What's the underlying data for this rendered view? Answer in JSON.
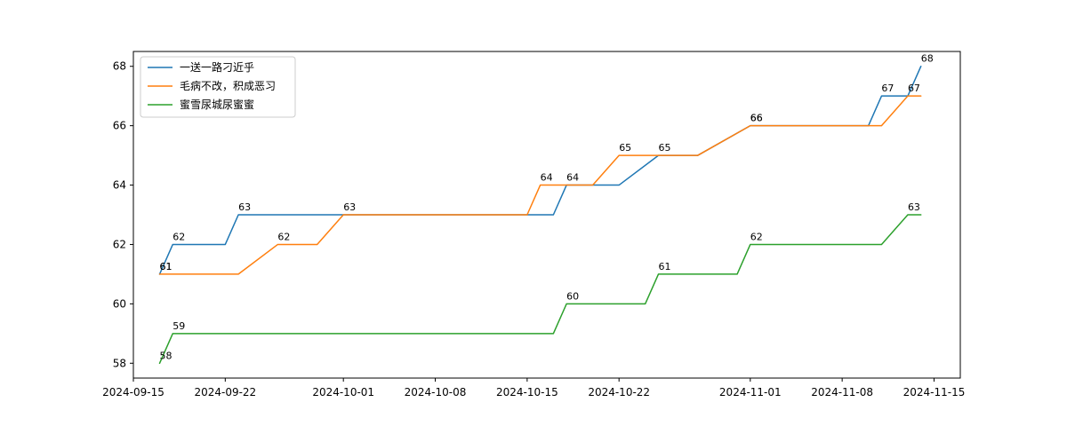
{
  "chart_data": {
    "type": "line",
    "title": "",
    "xlabel": "",
    "ylabel": "",
    "xlim": [
      "2024-09-15",
      "2024-11-17"
    ],
    "ylim": [
      57.5,
      68.5
    ],
    "grid": false,
    "legend_position": "top-left",
    "x_ticks": [
      "2024-09-15",
      "2024-09-22",
      "2024-10-01",
      "2024-10-08",
      "2024-10-15",
      "2024-10-22",
      "2024-11-01",
      "2024-11-08",
      "2024-11-15"
    ],
    "y_ticks": [
      58,
      60,
      62,
      64,
      66,
      68
    ],
    "series": [
      {
        "name": "一送一路刁近乎",
        "color": "#1f77b4",
        "points": [
          {
            "date": "2024-09-17",
            "value": 61
          },
          {
            "date": "2024-09-18",
            "value": 62
          },
          {
            "date": "2024-09-22",
            "value": 62
          },
          {
            "date": "2024-09-23",
            "value": 63
          },
          {
            "date": "2024-10-17",
            "value": 63
          },
          {
            "date": "2024-10-18",
            "value": 64
          },
          {
            "date": "2024-10-22",
            "value": 64
          },
          {
            "date": "2024-10-25",
            "value": 65
          },
          {
            "date": "2024-10-28",
            "value": 65
          },
          {
            "date": "2024-11-01",
            "value": 66
          },
          {
            "date": "2024-11-10",
            "value": 66
          },
          {
            "date": "2024-11-11",
            "value": 67
          },
          {
            "date": "2024-11-13",
            "value": 67
          },
          {
            "date": "2024-11-14",
            "value": 68
          }
        ],
        "labels": [
          {
            "date": "2024-09-17",
            "value": 61
          },
          {
            "date": "2024-09-18",
            "value": 62
          },
          {
            "date": "2024-09-23",
            "value": 63
          },
          {
            "date": "2024-10-18",
            "value": 64
          },
          {
            "date": "2024-10-25",
            "value": 65
          },
          {
            "date": "2024-11-01",
            "value": 66
          },
          {
            "date": "2024-11-11",
            "value": 67
          },
          {
            "date": "2024-11-14",
            "value": 68
          }
        ]
      },
      {
        "name": "毛病不改，积成恶习",
        "color": "#ff7f0e",
        "points": [
          {
            "date": "2024-09-17",
            "value": 61
          },
          {
            "date": "2024-09-23",
            "value": 61
          },
          {
            "date": "2024-09-26",
            "value": 62
          },
          {
            "date": "2024-09-29",
            "value": 62
          },
          {
            "date": "2024-10-01",
            "value": 63
          },
          {
            "date": "2024-10-15",
            "value": 63
          },
          {
            "date": "2024-10-16",
            "value": 64
          },
          {
            "date": "2024-10-20",
            "value": 64
          },
          {
            "date": "2024-10-22",
            "value": 65
          },
          {
            "date": "2024-10-28",
            "value": 65
          },
          {
            "date": "2024-11-01",
            "value": 66
          },
          {
            "date": "2024-11-11",
            "value": 66
          },
          {
            "date": "2024-11-13",
            "value": 67
          },
          {
            "date": "2024-11-14",
            "value": 67
          }
        ],
        "labels": [
          {
            "date": "2024-09-17",
            "value": 61
          },
          {
            "date": "2024-09-26",
            "value": 62
          },
          {
            "date": "2024-10-01",
            "value": 63
          },
          {
            "date": "2024-10-16",
            "value": 64
          },
          {
            "date": "2024-10-22",
            "value": 65
          },
          {
            "date": "2024-11-01",
            "value": 66
          },
          {
            "date": "2024-11-13",
            "value": 67
          }
        ]
      },
      {
        "name": "蜜雪尿城尿蜜蜜",
        "color": "#2ca02c",
        "points": [
          {
            "date": "2024-09-17",
            "value": 58
          },
          {
            "date": "2024-09-18",
            "value": 59
          },
          {
            "date": "2024-10-17",
            "value": 59
          },
          {
            "date": "2024-10-18",
            "value": 60
          },
          {
            "date": "2024-10-24",
            "value": 60
          },
          {
            "date": "2024-10-25",
            "value": 61
          },
          {
            "date": "2024-10-31",
            "value": 61
          },
          {
            "date": "2024-11-01",
            "value": 62
          },
          {
            "date": "2024-11-11",
            "value": 62
          },
          {
            "date": "2024-11-13",
            "value": 63
          },
          {
            "date": "2024-11-14",
            "value": 63
          }
        ],
        "labels": [
          {
            "date": "2024-09-17",
            "value": 58
          },
          {
            "date": "2024-09-18",
            "value": 59
          },
          {
            "date": "2024-10-18",
            "value": 60
          },
          {
            "date": "2024-10-25",
            "value": 61
          },
          {
            "date": "2024-11-01",
            "value": 62
          },
          {
            "date": "2024-11-13",
            "value": 63
          }
        ]
      }
    ]
  }
}
